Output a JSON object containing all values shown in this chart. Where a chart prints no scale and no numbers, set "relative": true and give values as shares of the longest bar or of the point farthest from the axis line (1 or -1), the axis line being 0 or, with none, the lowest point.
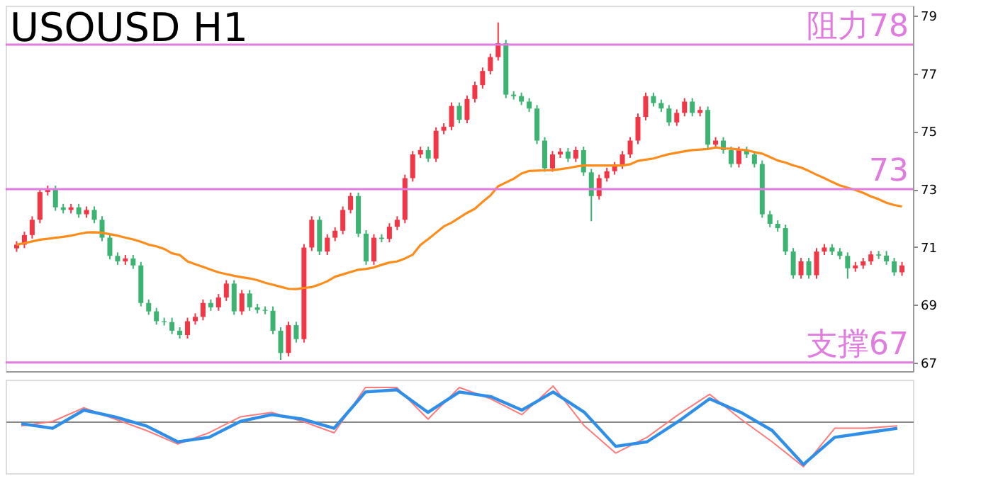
{
  "chart_data": [
    {
      "type": "candlestick",
      "title": "USOUSD H1",
      "tick_labels": "y",
      "yticks": [
        67,
        69,
        71,
        73,
        75,
        77,
        79
      ],
      "categories": [
        null,
        null,
        null,
        null,
        null,
        null,
        null,
        null,
        null,
        null,
        null,
        null,
        null,
        null,
        null,
        null,
        null,
        null,
        null,
        null,
        null,
        null,
        null,
        null,
        null,
        null,
        null,
        null,
        null,
        null,
        null,
        null,
        null,
        null,
        null,
        null,
        null,
        null,
        null,
        null,
        null,
        null,
        null,
        null,
        null,
        null,
        null,
        null,
        null,
        null,
        null,
        null,
        null,
        null,
        null,
        null,
        null,
        null,
        null,
        null,
        null,
        null,
        null,
        null,
        null,
        null,
        null,
        null,
        null,
        null,
        null,
        null,
        null,
        null,
        null,
        null,
        null,
        null,
        null,
        null,
        null,
        null,
        null,
        null,
        null,
        null,
        null,
        null,
        null,
        null,
        null,
        null,
        null,
        null,
        null,
        null,
        null,
        null,
        null,
        null,
        null,
        null,
        null,
        null,
        null,
        null,
        null,
        null,
        null,
        null,
        null,
        null,
        null,
        null,
        null
      ],
      "ylim": [
        66.7,
        79.35
      ],
      "ohlc": [
        [
          70.95,
          71.2,
          70.83,
          71.08
        ],
        [
          71.08,
          71.53,
          70.96,
          71.41
        ],
        [
          71.41,
          72.06,
          71.29,
          71.94
        ],
        [
          71.94,
          73.02,
          71.82,
          72.9
        ],
        [
          72.9,
          73.12,
          72.78,
          73.0
        ],
        [
          73.0,
          73.12,
          72.25,
          72.37
        ],
        [
          72.37,
          72.49,
          72.16,
          72.28
        ],
        [
          72.28,
          72.49,
          72.16,
          72.37
        ],
        [
          72.37,
          72.49,
          72.01,
          72.13
        ],
        [
          72.13,
          72.4,
          72.01,
          72.28
        ],
        [
          72.28,
          72.4,
          71.82,
          71.94
        ],
        [
          71.94,
          72.06,
          71.2,
          71.32
        ],
        [
          71.32,
          71.44,
          70.57,
          70.69
        ],
        [
          70.69,
          70.81,
          70.38,
          70.5
        ],
        [
          70.5,
          70.72,
          70.38,
          70.6
        ],
        [
          70.6,
          70.72,
          70.24,
          70.36
        ],
        [
          70.36,
          70.48,
          68.94,
          69.06
        ],
        [
          69.06,
          69.18,
          68.65,
          68.77
        ],
        [
          68.77,
          68.89,
          68.31,
          68.43
        ],
        [
          68.43,
          68.55,
          68.28,
          68.4
        ],
        [
          68.4,
          68.55,
          67.98,
          68.1
        ],
        [
          68.1,
          68.22,
          67.83,
          67.95
        ],
        [
          67.95,
          68.55,
          67.83,
          68.43
        ],
        [
          68.43,
          68.7,
          68.31,
          68.58
        ],
        [
          68.58,
          69.18,
          68.46,
          69.06
        ],
        [
          69.06,
          69.18,
          68.79,
          68.91
        ],
        [
          68.91,
          69.37,
          68.79,
          69.25
        ],
        [
          69.25,
          69.85,
          69.13,
          69.73
        ],
        [
          69.73,
          69.85,
          68.65,
          68.77
        ],
        [
          68.77,
          69.51,
          68.65,
          69.39
        ],
        [
          69.39,
          69.51,
          68.79,
          68.91
        ],
        [
          68.91,
          69.03,
          68.7,
          68.82
        ],
        [
          68.82,
          68.94,
          68.67,
          68.79
        ],
        [
          68.79,
          68.94,
          67.98,
          68.1
        ],
        [
          68.1,
          68.22,
          67.09,
          67.33
        ],
        [
          67.33,
          68.41,
          67.21,
          68.29
        ],
        [
          68.29,
          68.41,
          67.69,
          67.81
        ],
        [
          67.81,
          71.1,
          67.69,
          70.98
        ],
        [
          70.98,
          72.06,
          70.86,
          71.94
        ],
        [
          71.94,
          72.06,
          70.72,
          70.84
        ],
        [
          70.84,
          71.44,
          70.72,
          71.32
        ],
        [
          71.32,
          71.68,
          71.2,
          71.56
        ],
        [
          71.56,
          72.4,
          71.44,
          72.28
        ],
        [
          72.28,
          72.88,
          72.16,
          72.76
        ],
        [
          72.76,
          72.88,
          71.34,
          71.46
        ],
        [
          71.46,
          71.58,
          70.38,
          70.5
        ],
        [
          70.5,
          71.44,
          70.38,
          71.32
        ],
        [
          71.32,
          71.44,
          71.16,
          71.28
        ],
        [
          71.28,
          71.82,
          71.16,
          71.7
        ],
        [
          71.7,
          72.06,
          71.58,
          71.94
        ],
        [
          71.94,
          73.5,
          71.82,
          73.38
        ],
        [
          73.38,
          74.32,
          73.26,
          74.2
        ],
        [
          74.2,
          74.47,
          74.08,
          74.35
        ],
        [
          74.35,
          74.47,
          73.94,
          74.06
        ],
        [
          74.06,
          75.14,
          73.94,
          75.02
        ],
        [
          75.02,
          75.28,
          74.9,
          75.16
        ],
        [
          75.16,
          76.0,
          75.04,
          75.88
        ],
        [
          75.88,
          76.0,
          75.28,
          75.4
        ],
        [
          75.4,
          76.24,
          75.28,
          76.12
        ],
        [
          76.12,
          76.72,
          76.0,
          76.6
        ],
        [
          76.6,
          77.21,
          76.48,
          77.09
        ],
        [
          77.09,
          77.69,
          76.97,
          77.57
        ],
        [
          77.57,
          78.77,
          77.45,
          78.05
        ],
        [
          78.05,
          78.17,
          76.15,
          76.27
        ],
        [
          76.27,
          76.39,
          76.1,
          76.22
        ],
        [
          76.22,
          76.34,
          75.91,
          76.03
        ],
        [
          76.03,
          76.15,
          75.67,
          75.79
        ],
        [
          75.79,
          75.91,
          74.56,
          74.68
        ],
        [
          74.68,
          74.8,
          73.6,
          73.72
        ],
        [
          73.72,
          74.32,
          73.6,
          74.2
        ],
        [
          74.2,
          74.42,
          74.08,
          74.3
        ],
        [
          74.3,
          74.42,
          73.94,
          74.06
        ],
        [
          74.06,
          74.47,
          73.94,
          74.35
        ],
        [
          74.35,
          74.47,
          73.46,
          73.58
        ],
        [
          73.58,
          73.7,
          71.89,
          72.76
        ],
        [
          72.76,
          73.5,
          72.64,
          73.38
        ],
        [
          73.38,
          73.74,
          73.26,
          73.62
        ],
        [
          73.62,
          73.94,
          73.5,
          73.82
        ],
        [
          73.82,
          74.32,
          73.7,
          74.2
        ],
        [
          74.2,
          74.8,
          74.08,
          74.68
        ],
        [
          74.68,
          75.62,
          74.56,
          75.5
        ],
        [
          75.5,
          76.34,
          75.38,
          76.22
        ],
        [
          76.22,
          76.34,
          75.86,
          75.98
        ],
        [
          75.98,
          76.1,
          75.67,
          75.79
        ],
        [
          75.79,
          75.91,
          75.19,
          75.31
        ],
        [
          75.31,
          75.76,
          75.19,
          75.64
        ],
        [
          75.64,
          76.15,
          75.52,
          76.03
        ],
        [
          76.03,
          76.15,
          75.52,
          75.64
        ],
        [
          75.64,
          75.86,
          75.52,
          75.74
        ],
        [
          75.74,
          75.86,
          74.42,
          74.54
        ],
        [
          74.54,
          74.8,
          74.42,
          74.68
        ],
        [
          74.68,
          74.8,
          74.23,
          74.35
        ],
        [
          74.35,
          74.47,
          73.75,
          73.87
        ],
        [
          73.87,
          74.47,
          73.75,
          74.35
        ],
        [
          74.35,
          74.47,
          74.08,
          74.2
        ],
        [
          74.2,
          74.32,
          73.75,
          73.87
        ],
        [
          73.87,
          73.99,
          72.01,
          72.13
        ],
        [
          72.13,
          72.25,
          71.68,
          71.8
        ],
        [
          71.8,
          71.92,
          71.53,
          71.65
        ],
        [
          71.65,
          71.77,
          70.72,
          70.84
        ],
        [
          70.84,
          70.96,
          69.9,
          70.02
        ],
        [
          70.02,
          70.62,
          69.9,
          70.5
        ],
        [
          70.5,
          70.62,
          69.9,
          70.02
        ],
        [
          70.02,
          70.96,
          69.9,
          70.84
        ],
        [
          70.84,
          71.1,
          70.72,
          70.98
        ],
        [
          70.98,
          71.1,
          70.72,
          70.84
        ],
        [
          70.84,
          70.96,
          70.57,
          70.69
        ],
        [
          70.69,
          70.81,
          69.9,
          70.26
        ],
        [
          70.26,
          70.48,
          70.14,
          70.36
        ],
        [
          70.36,
          70.62,
          70.24,
          70.5
        ],
        [
          70.5,
          70.86,
          70.38,
          70.74
        ],
        [
          70.74,
          70.86,
          70.58,
          70.7
        ],
        [
          70.7,
          70.86,
          70.38,
          70.5
        ],
        [
          70.5,
          70.62,
          70.0,
          70.12
        ],
        [
          70.12,
          70.48,
          70.0,
          70.36
        ]
      ],
      "colors": [
        "#f23645",
        "#f23645",
        "#f23645",
        "#f23645",
        "#f23645",
        "#3cb371",
        "#3cb371",
        "#f23645",
        "#3cb371",
        "#f23645",
        "#3cb371",
        "#3cb371",
        "#3cb371",
        "#3cb371",
        "#f23645",
        "#3cb371",
        "#3cb371",
        "#3cb371",
        "#3cb371",
        "#3cb371",
        "#3cb371",
        "#3cb371",
        "#f23645",
        "#f23645",
        "#f23645",
        "#3cb371",
        "#f23645",
        "#f23645",
        "#3cb371",
        "#f23645",
        "#3cb371",
        "#3cb371",
        "#3cb371",
        "#3cb371",
        "#3cb371",
        "#f23645",
        "#3cb371",
        "#f23645",
        "#f23645",
        "#3cb371",
        "#f23645",
        "#f23645",
        "#f23645",
        "#f23645",
        "#3cb371",
        "#3cb371",
        "#f23645",
        "#3cb371",
        "#f23645",
        "#f23645",
        "#f23645",
        "#f23645",
        "#f23645",
        "#3cb371",
        "#f23645",
        "#f23645",
        "#f23645",
        "#3cb371",
        "#f23645",
        "#f23645",
        "#f23645",
        "#f23645",
        "#f23645",
        "#3cb371",
        "#3cb371",
        "#3cb371",
        "#3cb371",
        "#3cb371",
        "#3cb371",
        "#f23645",
        "#f23645",
        "#3cb371",
        "#f23645",
        "#3cb371",
        "#3cb371",
        "#f23645",
        "#f23645",
        "#f23645",
        "#f23645",
        "#f23645",
        "#f23645",
        "#f23645",
        "#3cb371",
        "#3cb371",
        "#3cb371",
        "#f23645",
        "#f23645",
        "#3cb371",
        "#f23645",
        "#3cb371",
        "#f23645",
        "#3cb371",
        "#3cb371",
        "#f23645",
        "#3cb371",
        "#3cb371",
        "#3cb371",
        "#3cb371",
        "#3cb371",
        "#3cb371",
        "#3cb371",
        "#f23645",
        "#3cb371",
        "#f23645",
        "#f23645",
        "#3cb371",
        "#3cb371",
        "#3cb371",
        "#f23645",
        "#f23645",
        "#f23645",
        "#3cb371",
        "#3cb371",
        "#3cb371",
        "#f23645"
      ],
      "series": [
        {
          "type": "line",
          "color": "#ff8c1a",
          "values": [
            71.08,
            71.13,
            71.19,
            71.25,
            71.28,
            71.32,
            71.35,
            71.39,
            71.45,
            71.5,
            71.51,
            71.49,
            71.44,
            71.39,
            71.32,
            71.26,
            71.18,
            71.08,
            71.02,
            70.93,
            70.78,
            70.72,
            70.5,
            70.4,
            70.31,
            70.21,
            70.12,
            70.06,
            70.0,
            69.95,
            69.91,
            69.85,
            69.76,
            69.69,
            69.62,
            69.55,
            69.54,
            69.58,
            69.61,
            69.7,
            69.81,
            69.97,
            70.05,
            70.13,
            70.21,
            70.24,
            70.29,
            70.38,
            70.46,
            70.5,
            70.6,
            70.73,
            71.07,
            71.27,
            71.49,
            71.71,
            71.84,
            72.01,
            72.18,
            72.32,
            72.56,
            72.78,
            73.1,
            73.23,
            73.36,
            73.54,
            73.63,
            73.64,
            73.65,
            73.66,
            73.69,
            73.73,
            73.78,
            73.82,
            73.82,
            73.82,
            73.82,
            73.82,
            73.82,
            73.86,
            73.98,
            74.02,
            74.06,
            74.14,
            74.21,
            74.26,
            74.31,
            74.35,
            74.37,
            74.39,
            74.44,
            74.41,
            74.4,
            74.37,
            74.35,
            74.28,
            74.23,
            74.11,
            73.99,
            73.92,
            73.82,
            73.75,
            73.63,
            73.5,
            73.38,
            73.25,
            73.13,
            73.05,
            72.97,
            72.87,
            72.75,
            72.65,
            72.53,
            72.45,
            72.4
          ]
        }
      ],
      "ref_lines": [
        {
          "axis": "y",
          "value": 78,
          "label": "阻力78",
          "color": "#e07be0"
        },
        {
          "axis": "y",
          "value": 73,
          "label": "73",
          "color": "#e07be0"
        },
        {
          "axis": "y",
          "value": 67,
          "label": "支撑67",
          "color": "#e07be0"
        }
      ]
    },
    {
      "type": "line",
      "relative": true,
      "tick_labels": false,
      "categories": [
        null,
        null,
        null,
        null,
        null,
        null,
        null,
        null,
        null,
        null,
        null,
        null,
        null,
        null,
        null,
        null,
        null,
        null,
        null,
        null,
        null,
        null,
        null,
        null,
        null,
        null,
        null,
        null,
        null
      ],
      "series": [
        {
          "color": "#ff7b7b",
          "values": [
            -0.1,
            0.0,
            0.3,
            0.05,
            -0.2,
            -0.5,
            -0.25,
            0.1,
            0.2,
            0.0,
            -0.25,
            0.75,
            0.75,
            0.05,
            0.75,
            0.5,
            0.15,
            0.78,
            -0.1,
            -0.7,
            -0.35,
            0.15,
            0.6,
            0.05,
            -0.45,
            -1.0,
            -0.15,
            -0.15,
            -0.1
          ]
        },
        {
          "color": "#2f8fe8",
          "values": [
            -0.05,
            -0.15,
            0.25,
            0.1,
            -0.1,
            -0.45,
            -0.35,
            0.0,
            0.15,
            0.05,
            -0.15,
            0.65,
            0.7,
            0.2,
            0.65,
            0.55,
            0.25,
            0.65,
            0.2,
            -0.55,
            -0.45,
            0.0,
            0.5,
            0.2,
            -0.2,
            -0.95,
            -0.35,
            -0.25,
            -0.15
          ]
        }
      ]
    }
  ]
}
